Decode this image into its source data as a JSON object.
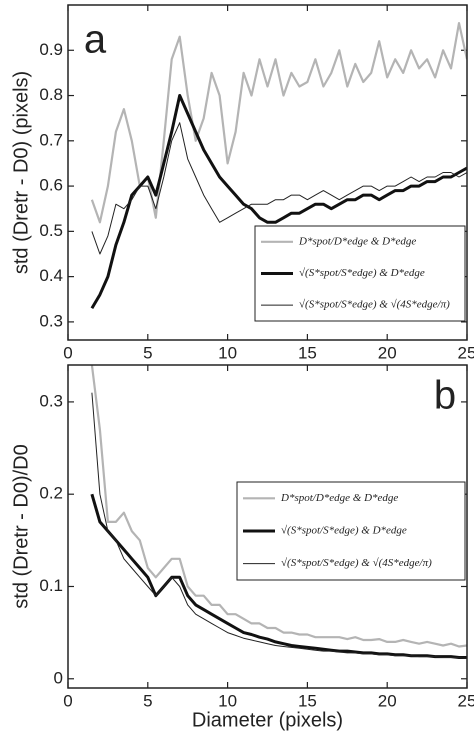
{
  "chart_data": [
    {
      "type": "line",
      "panel_label": "a",
      "ylabel": "std (Dretr - D0)  (pixels)",
      "x": [
        1.5,
        2,
        2.5,
        3,
        3.5,
        4,
        4.5,
        5,
        5.5,
        6,
        6.5,
        7,
        7.5,
        8,
        8.5,
        9,
        9.5,
        10,
        10.5,
        11,
        11.5,
        12,
        12.5,
        13,
        13.5,
        14,
        14.5,
        15,
        15.5,
        16,
        16.5,
        17,
        17.5,
        18,
        18.5,
        19,
        19.5,
        20,
        20.5,
        21,
        21.5,
        22,
        22.5,
        23,
        23.5,
        24,
        24.5,
        25
      ],
      "series": [
        {
          "name": "D*spot/D*edge  &  D*edge",
          "color": "#b4b4b4",
          "line_width": 2.2,
          "values": [
            0.57,
            0.52,
            0.6,
            0.72,
            0.77,
            0.7,
            0.6,
            0.62,
            0.53,
            0.7,
            0.88,
            0.93,
            0.8,
            0.7,
            0.75,
            0.85,
            0.8,
            0.65,
            0.72,
            0.85,
            0.8,
            0.88,
            0.82,
            0.88,
            0.8,
            0.85,
            0.82,
            0.83,
            0.88,
            0.82,
            0.85,
            0.9,
            0.82,
            0.87,
            0.83,
            0.85,
            0.92,
            0.84,
            0.88,
            0.85,
            0.9,
            0.86,
            0.88,
            0.84,
            0.9,
            0.86,
            0.96,
            0.88
          ]
        },
        {
          "name": "√(S*spot/S*edge)  &  D*edge",
          "color": "#111111",
          "line_width": 3,
          "values": [
            0.33,
            0.36,
            0.4,
            0.47,
            0.52,
            0.58,
            0.6,
            0.62,
            0.58,
            0.65,
            0.72,
            0.8,
            0.76,
            0.72,
            0.68,
            0.65,
            0.62,
            0.6,
            0.58,
            0.56,
            0.55,
            0.53,
            0.52,
            0.52,
            0.53,
            0.54,
            0.54,
            0.55,
            0.56,
            0.56,
            0.55,
            0.56,
            0.57,
            0.57,
            0.58,
            0.58,
            0.57,
            0.58,
            0.59,
            0.59,
            0.6,
            0.6,
            0.61,
            0.61,
            0.62,
            0.62,
            0.63,
            0.64
          ]
        },
        {
          "name": "√(S*spot/S*edge)  &  √(4S*edge/π)",
          "color": "#222222",
          "line_width": 1,
          "values": [
            0.5,
            0.45,
            0.49,
            0.56,
            0.55,
            0.57,
            0.6,
            0.6,
            0.55,
            0.62,
            0.7,
            0.74,
            0.66,
            0.62,
            0.58,
            0.55,
            0.52,
            0.53,
            0.54,
            0.55,
            0.56,
            0.56,
            0.56,
            0.57,
            0.57,
            0.58,
            0.58,
            0.57,
            0.58,
            0.59,
            0.58,
            0.57,
            0.58,
            0.59,
            0.6,
            0.6,
            0.59,
            0.6,
            0.6,
            0.61,
            0.62,
            0.61,
            0.62,
            0.62,
            0.63,
            0.63,
            0.62,
            0.63
          ]
        }
      ],
      "xlim": [
        0,
        25
      ],
      "ylim": [
        0.26,
        1.0
      ],
      "xticks": [
        0,
        5,
        10,
        15,
        20,
        25
      ],
      "yticks": [
        0.3,
        0.4,
        0.5,
        0.6,
        0.7,
        0.8,
        0.9
      ]
    },
    {
      "type": "line",
      "panel_label": "b",
      "ylabel": "std (Dretr - D0)/D0",
      "xlabel": "Diameter (pixels)",
      "x": [
        1.5,
        2,
        2.5,
        3,
        3.5,
        4,
        4.5,
        5,
        5.5,
        6,
        6.5,
        7,
        7.5,
        8,
        8.5,
        9,
        9.5,
        10,
        10.5,
        11,
        11.5,
        12,
        12.5,
        13,
        13.5,
        14,
        14.5,
        15,
        15.5,
        16,
        16.5,
        17,
        17.5,
        18,
        18.5,
        19,
        19.5,
        20,
        20.5,
        21,
        21.5,
        22,
        22.5,
        23,
        23.5,
        24,
        24.5,
        25
      ],
      "series": [
        {
          "name": "D*spot/D*edge  &  D*edge",
          "color": "#b4b4b4",
          "line_width": 2.2,
          "values": [
            0.34,
            0.27,
            0.17,
            0.17,
            0.18,
            0.16,
            0.15,
            0.12,
            0.11,
            0.12,
            0.13,
            0.13,
            0.1,
            0.09,
            0.09,
            0.08,
            0.08,
            0.07,
            0.07,
            0.065,
            0.06,
            0.06,
            0.055,
            0.055,
            0.05,
            0.05,
            0.048,
            0.048,
            0.045,
            0.045,
            0.045,
            0.045,
            0.043,
            0.045,
            0.042,
            0.042,
            0.043,
            0.04,
            0.04,
            0.042,
            0.04,
            0.038,
            0.04,
            0.038,
            0.036,
            0.038,
            0.035,
            0.036
          ]
        },
        {
          "name": "√(S*spot/S*edge)  &  D*edge",
          "color": "#111111",
          "line_width": 3,
          "values": [
            0.2,
            0.17,
            0.16,
            0.15,
            0.14,
            0.13,
            0.12,
            0.11,
            0.09,
            0.1,
            0.11,
            0.11,
            0.09,
            0.08,
            0.075,
            0.07,
            0.065,
            0.06,
            0.055,
            0.05,
            0.048,
            0.045,
            0.043,
            0.04,
            0.038,
            0.036,
            0.035,
            0.034,
            0.033,
            0.032,
            0.031,
            0.03,
            0.03,
            0.029,
            0.028,
            0.028,
            0.027,
            0.027,
            0.026,
            0.026,
            0.025,
            0.025,
            0.025,
            0.024,
            0.024,
            0.024,
            0.023,
            0.023
          ]
        },
        {
          "name": "√(S*spot/S*edge)  &  √(4S*edge/π)",
          "color": "#222222",
          "line_width": 1,
          "values": [
            0.31,
            0.2,
            0.16,
            0.15,
            0.13,
            0.12,
            0.11,
            0.1,
            0.09,
            0.1,
            0.11,
            0.1,
            0.08,
            0.07,
            0.065,
            0.06,
            0.055,
            0.05,
            0.047,
            0.044,
            0.042,
            0.04,
            0.038,
            0.036,
            0.035,
            0.034,
            0.033,
            0.032,
            0.031,
            0.03,
            0.03,
            0.029,
            0.028,
            0.028,
            0.027,
            0.027,
            0.026,
            0.026,
            0.025,
            0.025,
            0.025,
            0.024,
            0.024,
            0.024,
            0.023,
            0.023,
            0.023,
            0.022
          ]
        }
      ],
      "xlim": [
        0,
        25
      ],
      "ylim": [
        -0.01,
        0.34
      ],
      "xticks": [
        0,
        5,
        10,
        15,
        20,
        25
      ],
      "yticks": [
        0,
        0.1,
        0.2,
        0.3
      ]
    }
  ]
}
